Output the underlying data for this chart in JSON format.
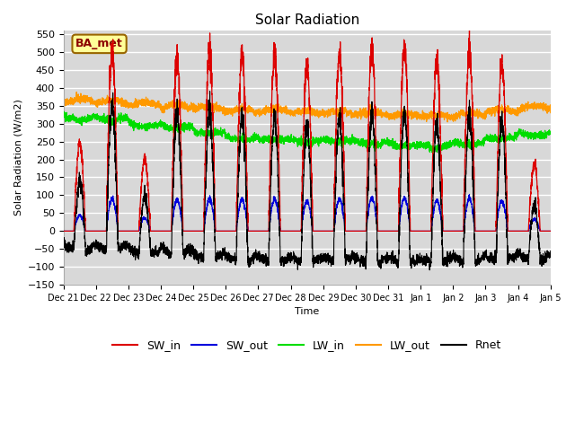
{
  "title": "Solar Radiation",
  "ylabel": "Solar Radiation (W/m2)",
  "xlabel": "Time",
  "ylim": [
    -150,
    560
  ],
  "yticks": [
    -150,
    -100,
    -50,
    0,
    50,
    100,
    150,
    200,
    250,
    300,
    350,
    400,
    450,
    500,
    550
  ],
  "num_points": 4320,
  "n_days": 15,
  "bg_color": "#d8d8d8",
  "grid_color": "#ffffff",
  "colors": {
    "SW_in": "#dd0000",
    "SW_out": "#0000dd",
    "LW_in": "#00dd00",
    "LW_out": "#ff9900",
    "Rnet": "#000000"
  },
  "label_box_color": "#ffff99",
  "label_box_edge": "#996600",
  "station_label": "BA_met"
}
